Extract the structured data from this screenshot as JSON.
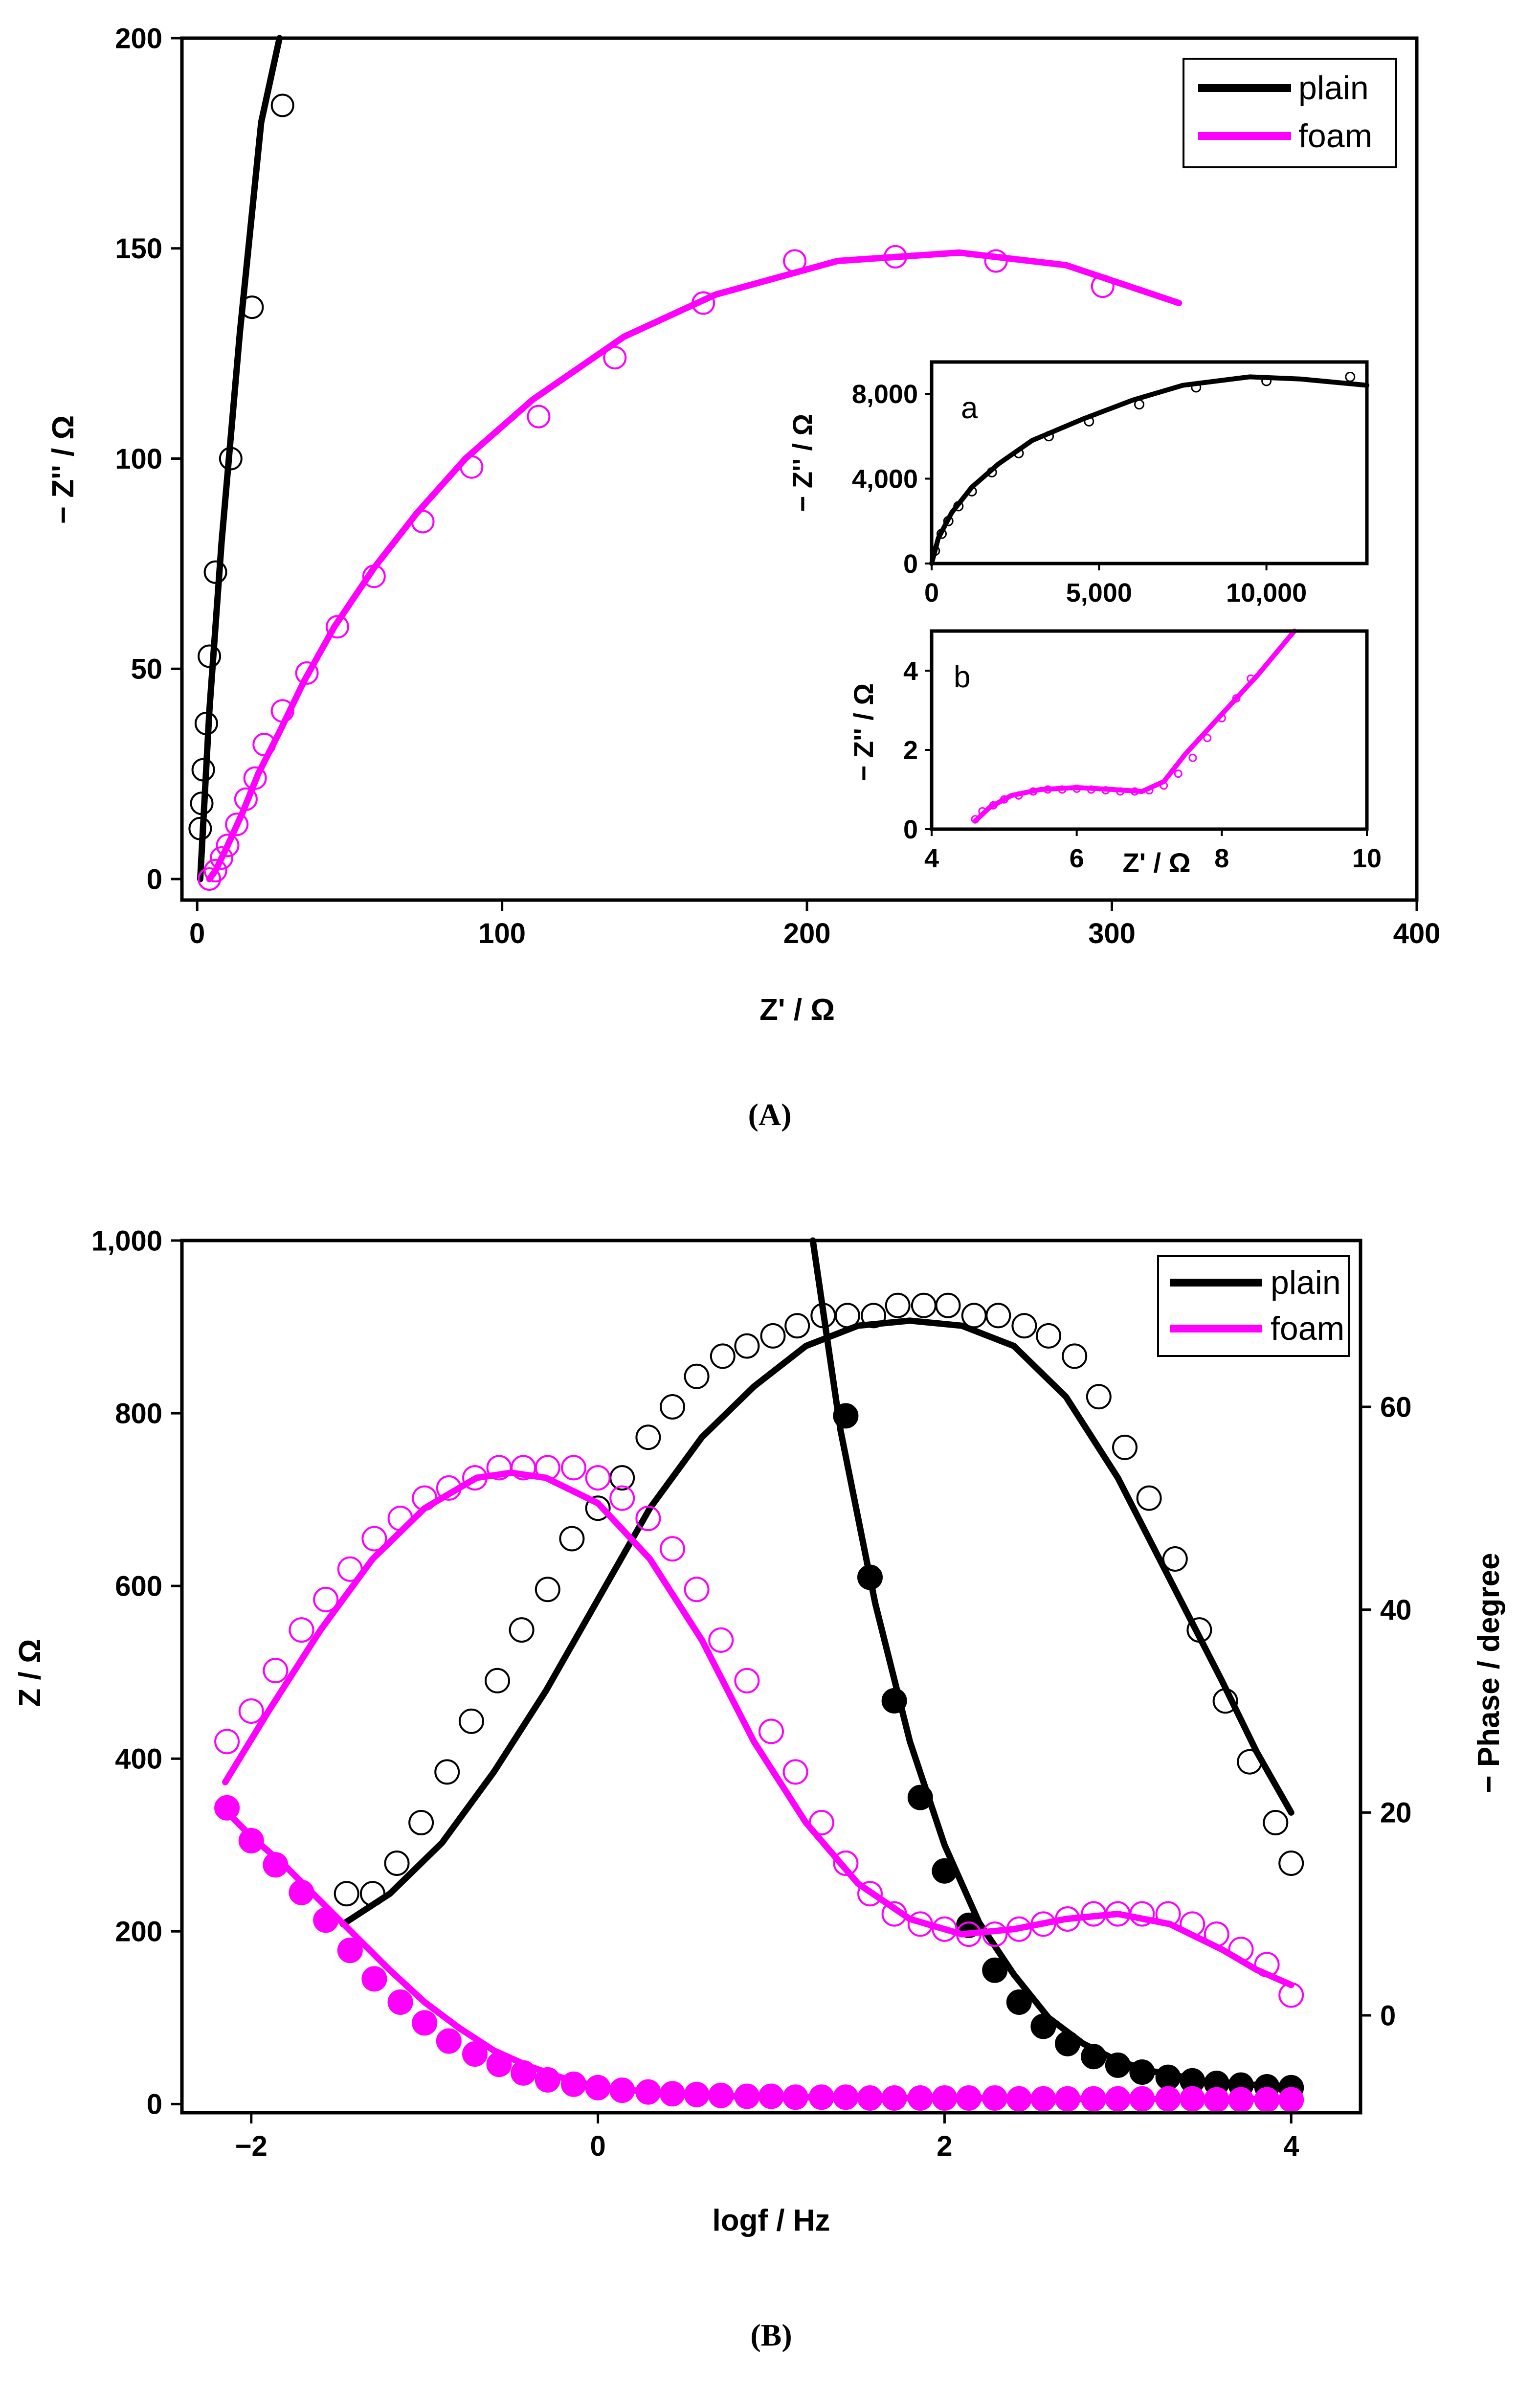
{
  "colors": {
    "plain": "#000000",
    "foam": "#ff00ff"
  },
  "chart_data": [
    {
      "id": "A",
      "type": "scatter",
      "caption": "(A)",
      "xlabel": "Z' / Ω",
      "ylabel": "− Z'' / Ω",
      "xlim": [
        -5,
        400
      ],
      "ylim": [
        -5,
        200
      ],
      "xticks": [
        0,
        100,
        200,
        300,
        400
      ],
      "yticks": [
        0,
        50,
        100,
        150,
        200
      ],
      "xtick_labels": [
        "0",
        "100",
        "200",
        "300",
        "400"
      ],
      "ytick_labels": [
        "0",
        "50",
        "100",
        "150",
        "200"
      ],
      "legend": [
        {
          "name": "plain",
          "color": "#000000"
        },
        {
          "name": "foam",
          "color": "#ff00ff"
        }
      ],
      "legend_position": "top-right",
      "series": [
        {
          "name": "plain",
          "kind": "fit",
          "x": [
            1,
            4,
            8,
            14,
            21,
            27
          ],
          "y": [
            0,
            40,
            80,
            130,
            180,
            200
          ]
        },
        {
          "name": "plain",
          "kind": "data",
          "x": [
            1,
            1.5,
            2,
            3,
            4,
            6,
            11,
            18,
            28
          ],
          "y": [
            12,
            18,
            26,
            37,
            53,
            73,
            100,
            136,
            184
          ]
        },
        {
          "name": "foam",
          "kind": "fit",
          "x": [
            4,
            6,
            10,
            15,
            20,
            27,
            35,
            45,
            58,
            72,
            88,
            110,
            140,
            170,
            210,
            250,
            285,
            322
          ],
          "y": [
            0,
            2,
            8,
            16,
            25,
            35,
            47,
            60,
            74,
            87,
            100,
            114,
            129,
            139,
            147,
            149,
            146,
            137
          ]
        },
        {
          "name": "foam",
          "kind": "data",
          "x": [
            4,
            6,
            8,
            10,
            13,
            16,
            19,
            22,
            28,
            36,
            46,
            58,
            74,
            90,
            112,
            137,
            166,
            196,
            229,
            262,
            297
          ],
          "y": [
            0,
            2,
            5,
            8,
            13,
            19,
            24,
            32,
            40,
            49,
            60,
            72,
            85,
            98,
            110,
            124,
            137,
            147,
            148,
            147,
            141
          ]
        }
      ]
    },
    {
      "id": "A-inset-a",
      "type": "scatter",
      "panel_label": "a",
      "xlabel": "",
      "ylabel": "− Z'' / Ω",
      "xlim": [
        0,
        13000
      ],
      "ylim": [
        0,
        9500
      ],
      "xticks": [
        0,
        5000,
        10000
      ],
      "yticks": [
        0,
        4000,
        8000
      ],
      "xtick_labels": [
        "0",
        "5,000",
        "10,000"
      ],
      "ytick_labels": [
        "0",
        "4,000",
        "8,000"
      ],
      "series": [
        {
          "name": "plain",
          "kind": "fit",
          "x": [
            0,
            200,
            600,
            1200,
            2000,
            3000,
            4500,
            6000,
            7500,
            9500,
            11000,
            13000
          ],
          "y": [
            0,
            1200,
            2400,
            3600,
            4700,
            5800,
            6800,
            7700,
            8400,
            8800,
            8700,
            8400
          ]
        },
        {
          "name": "plain",
          "kind": "data",
          "x": [
            100,
            300,
            500,
            800,
            1200,
            1800,
            2600,
            3500,
            4700,
            6200,
            7900,
            10000,
            12500
          ],
          "y": [
            600,
            1400,
            2000,
            2700,
            3400,
            4300,
            5200,
            6000,
            6700,
            7500,
            8300,
            8600,
            8800
          ]
        }
      ]
    },
    {
      "id": "A-inset-b",
      "type": "scatter",
      "panel_label": "b",
      "xlabel": "Z' / Ω",
      "ylabel": "− Z'' / Ω",
      "xlim": [
        4,
        10
      ],
      "ylim": [
        0,
        5
      ],
      "xticks": [
        4,
        6,
        8,
        10
      ],
      "yticks": [
        0,
        2,
        4
      ],
      "xtick_labels": [
        "4",
        "6",
        "8",
        "10"
      ],
      "ytick_labels": [
        "0",
        "2",
        "4"
      ],
      "series": [
        {
          "name": "foam",
          "kind": "fit",
          "x": [
            4.6,
            4.8,
            5.1,
            5.5,
            6.0,
            6.5,
            6.9,
            7.2,
            7.5,
            8.0,
            8.5,
            9.0
          ],
          "y": [
            0.2,
            0.55,
            0.85,
            1.0,
            1.05,
            1.0,
            0.95,
            1.2,
            1.9,
            2.9,
            3.9,
            5.0
          ]
        },
        {
          "name": "foam",
          "kind": "data",
          "x": [
            4.6,
            4.7,
            4.85,
            5.0,
            5.2,
            5.4,
            5.6,
            5.8,
            6.0,
            6.2,
            6.4,
            6.6,
            6.8,
            7.0,
            7.2,
            7.4,
            7.6,
            7.8,
            8.0,
            8.2,
            8.4
          ],
          "y": [
            0.25,
            0.45,
            0.6,
            0.75,
            0.85,
            0.95,
            1.0,
            1.0,
            1.02,
            1.0,
            0.98,
            0.95,
            0.95,
            0.98,
            1.1,
            1.4,
            1.8,
            2.3,
            2.8,
            3.3,
            3.8
          ]
        }
      ]
    },
    {
      "id": "B",
      "type": "scatter",
      "caption": "(B)",
      "xlabel": "logf / Hz",
      "ylabel": "Z / Ω",
      "y2label": "− Phase / degree",
      "xlim": [
        -2.4,
        4.4
      ],
      "ylim": [
        -10,
        1000
      ],
      "y2lim": [
        -9.6,
        76.4
      ],
      "xticks": [
        -2,
        0,
        2,
        4
      ],
      "yticks": [
        0,
        200,
        400,
        600,
        800,
        1000
      ],
      "y2ticks": [
        0,
        20,
        40,
        60
      ],
      "xtick_labels": [
        "−2",
        "0",
        "2",
        "4"
      ],
      "ytick_labels": [
        "0",
        "200",
        "400",
        "600",
        "800",
        "1,000"
      ],
      "y2tick_labels": [
        "0",
        "20",
        "40",
        "60"
      ],
      "legend": [
        {
          "name": "plain",
          "color": "#000000"
        },
        {
          "name": "foam",
          "color": "#ff00ff"
        }
      ],
      "legend_position": "top-right",
      "series": [
        {
          "name": "plain |Z| fit",
          "axis": "left",
          "kind": "fit",
          "x": [
            1.24,
            1.4,
            1.6,
            1.8,
            2.0,
            2.2,
            2.4,
            2.6,
            2.8,
            3.0,
            3.2,
            3.5,
            3.8,
            4.0
          ],
          "y": [
            1000,
            780,
            580,
            420,
            300,
            210,
            150,
            100,
            70,
            50,
            38,
            27,
            22,
            20
          ]
        },
        {
          "name": "plain |Z| data",
          "axis": "left",
          "kind": "data-filled",
          "x": [
            1.43,
            1.57,
            1.71,
            1.86,
            2.0,
            2.14,
            2.29,
            2.43,
            2.57,
            2.71,
            2.86,
            3.0,
            3.14,
            3.29,
            3.43,
            3.57,
            3.71,
            3.86,
            4.0
          ],
          "y": [
            797,
            610,
            467,
            355,
            270,
            207,
            155,
            118,
            90,
            70,
            55,
            45,
            37,
            31,
            27,
            24,
            22,
            20,
            19
          ]
        },
        {
          "name": "plain phase fit",
          "axis": "right",
          "kind": "fit",
          "x": [
            -1.47,
            -1.2,
            -0.9,
            -0.6,
            -0.3,
            0,
            0.3,
            0.6,
            0.9,
            1.2,
            1.5,
            1.8,
            2.1,
            2.4,
            2.7,
            3.0,
            3.3,
            3.6,
            3.8,
            4.0
          ],
          "y": [
            9,
            12,
            17,
            24,
            32,
            41,
            50,
            57,
            62,
            66,
            68,
            68.5,
            68,
            66,
            61,
            53,
            43,
            33,
            26,
            20
          ]
        },
        {
          "name": "plain phase data",
          "axis": "right",
          "kind": "data",
          "x": [
            -1.45,
            -1.3,
            -1.16,
            -1.02,
            -0.87,
            -0.73,
            -0.58,
            -0.44,
            -0.29,
            -0.15,
            0,
            0.14,
            0.29,
            0.43,
            0.57,
            0.72,
            0.86,
            1.01,
            1.15,
            1.3,
            1.44,
            1.59,
            1.73,
            1.88,
            2.02,
            2.17,
            2.31,
            2.46,
            2.6,
            2.75,
            2.89,
            3.04,
            3.18,
            3.33,
            3.47,
            3.62,
            3.76,
            3.91,
            4.0
          ],
          "y": [
            12,
            12,
            15,
            19,
            24,
            29,
            33,
            38,
            42,
            47,
            50,
            53,
            57,
            60,
            63,
            65,
            66,
            67,
            68,
            69,
            69,
            69,
            70,
            70,
            70,
            69,
            69,
            68,
            67,
            65,
            61,
            56,
            51,
            45,
            38,
            31,
            25,
            19,
            15
          ]
        },
        {
          "name": "foam |Z| fit",
          "axis": "left",
          "kind": "fit",
          "x": [
            -2.15,
            -2.0,
            -1.8,
            -1.6,
            -1.4,
            -1.2,
            -1.0,
            -0.8,
            -0.6,
            -0.4,
            -0.2,
            0,
            0.4,
            0.8,
            1.2,
            1.6,
            2.0,
            3.0,
            4.0
          ],
          "y": [
            340,
            310,
            275,
            235,
            195,
            155,
            118,
            88,
            62,
            44,
            30,
            20,
            12,
            9,
            8,
            7,
            7,
            6,
            6
          ]
        },
        {
          "name": "foam |Z| data",
          "axis": "left",
          "kind": "data-filled",
          "x": [
            -2.14,
            -2.0,
            -1.86,
            -1.71,
            -1.57,
            -1.43,
            -1.29,
            -1.14,
            -1.0,
            -0.86,
            -0.71,
            -0.57,
            -0.43,
            -0.29,
            -0.14,
            0,
            0.14,
            0.29,
            0.43,
            0.57,
            0.71,
            0.86,
            1.0,
            1.14,
            1.29,
            1.43,
            1.57,
            1.71,
            1.86,
            2.0,
            2.14,
            2.29,
            2.43,
            2.57,
            2.71,
            2.86,
            3.0,
            3.14,
            3.29,
            3.43,
            3.57,
            3.71,
            3.86,
            4.0
          ],
          "y": [
            343,
            305,
            277,
            245,
            213,
            178,
            145,
            118,
            94,
            73,
            58,
            46,
            36,
            28,
            23,
            19,
            16,
            14,
            12,
            11,
            10,
            9,
            9,
            8,
            8,
            8,
            7,
            7,
            7,
            7,
            7,
            7,
            6,
            6,
            6,
            6,
            6,
            6,
            6,
            6,
            5,
            5,
            5,
            5
          ]
        },
        {
          "name": "foam phase fit",
          "axis": "right",
          "kind": "fit",
          "x": [
            -2.15,
            -1.9,
            -1.6,
            -1.3,
            -1.0,
            -0.7,
            -0.5,
            -0.3,
            0,
            0.3,
            0.6,
            0.9,
            1.2,
            1.5,
            1.8,
            2.1,
            2.4,
            2.7,
            3.0,
            3.3,
            3.6,
            3.8,
            4.0
          ],
          "y": [
            23,
            30,
            38,
            45,
            50,
            53,
            53.5,
            53,
            50.5,
            45,
            37,
            27,
            19,
            13,
            9.5,
            8,
            8.5,
            9.5,
            10,
            9,
            6.5,
            4.5,
            3
          ]
        },
        {
          "name": "foam phase data",
          "axis": "right",
          "kind": "data",
          "x": [
            -2.14,
            -2.0,
            -1.86,
            -1.71,
            -1.57,
            -1.43,
            -1.29,
            -1.14,
            -1.0,
            -0.86,
            -0.71,
            -0.57,
            -0.43,
            -0.29,
            -0.14,
            0,
            0.14,
            0.29,
            0.43,
            0.57,
            0.71,
            0.86,
            1.0,
            1.14,
            1.29,
            1.43,
            1.57,
            1.71,
            1.86,
            2.0,
            2.14,
            2.29,
            2.43,
            2.57,
            2.71,
            2.86,
            3.0,
            3.14,
            3.29,
            3.43,
            3.57,
            3.71,
            3.86,
            4.0
          ],
          "y": [
            27,
            30,
            34,
            38,
            41,
            44,
            47,
            49,
            51,
            52,
            53,
            54,
            54,
            54,
            54,
            53,
            51,
            49,
            46,
            42,
            37,
            33,
            28,
            24,
            19,
            15,
            12,
            10,
            9,
            8.5,
            8,
            8,
            8.5,
            9,
            9.5,
            10,
            10,
            10,
            10,
            9,
            8,
            6.5,
            5,
            2
          ]
        }
      ]
    }
  ]
}
